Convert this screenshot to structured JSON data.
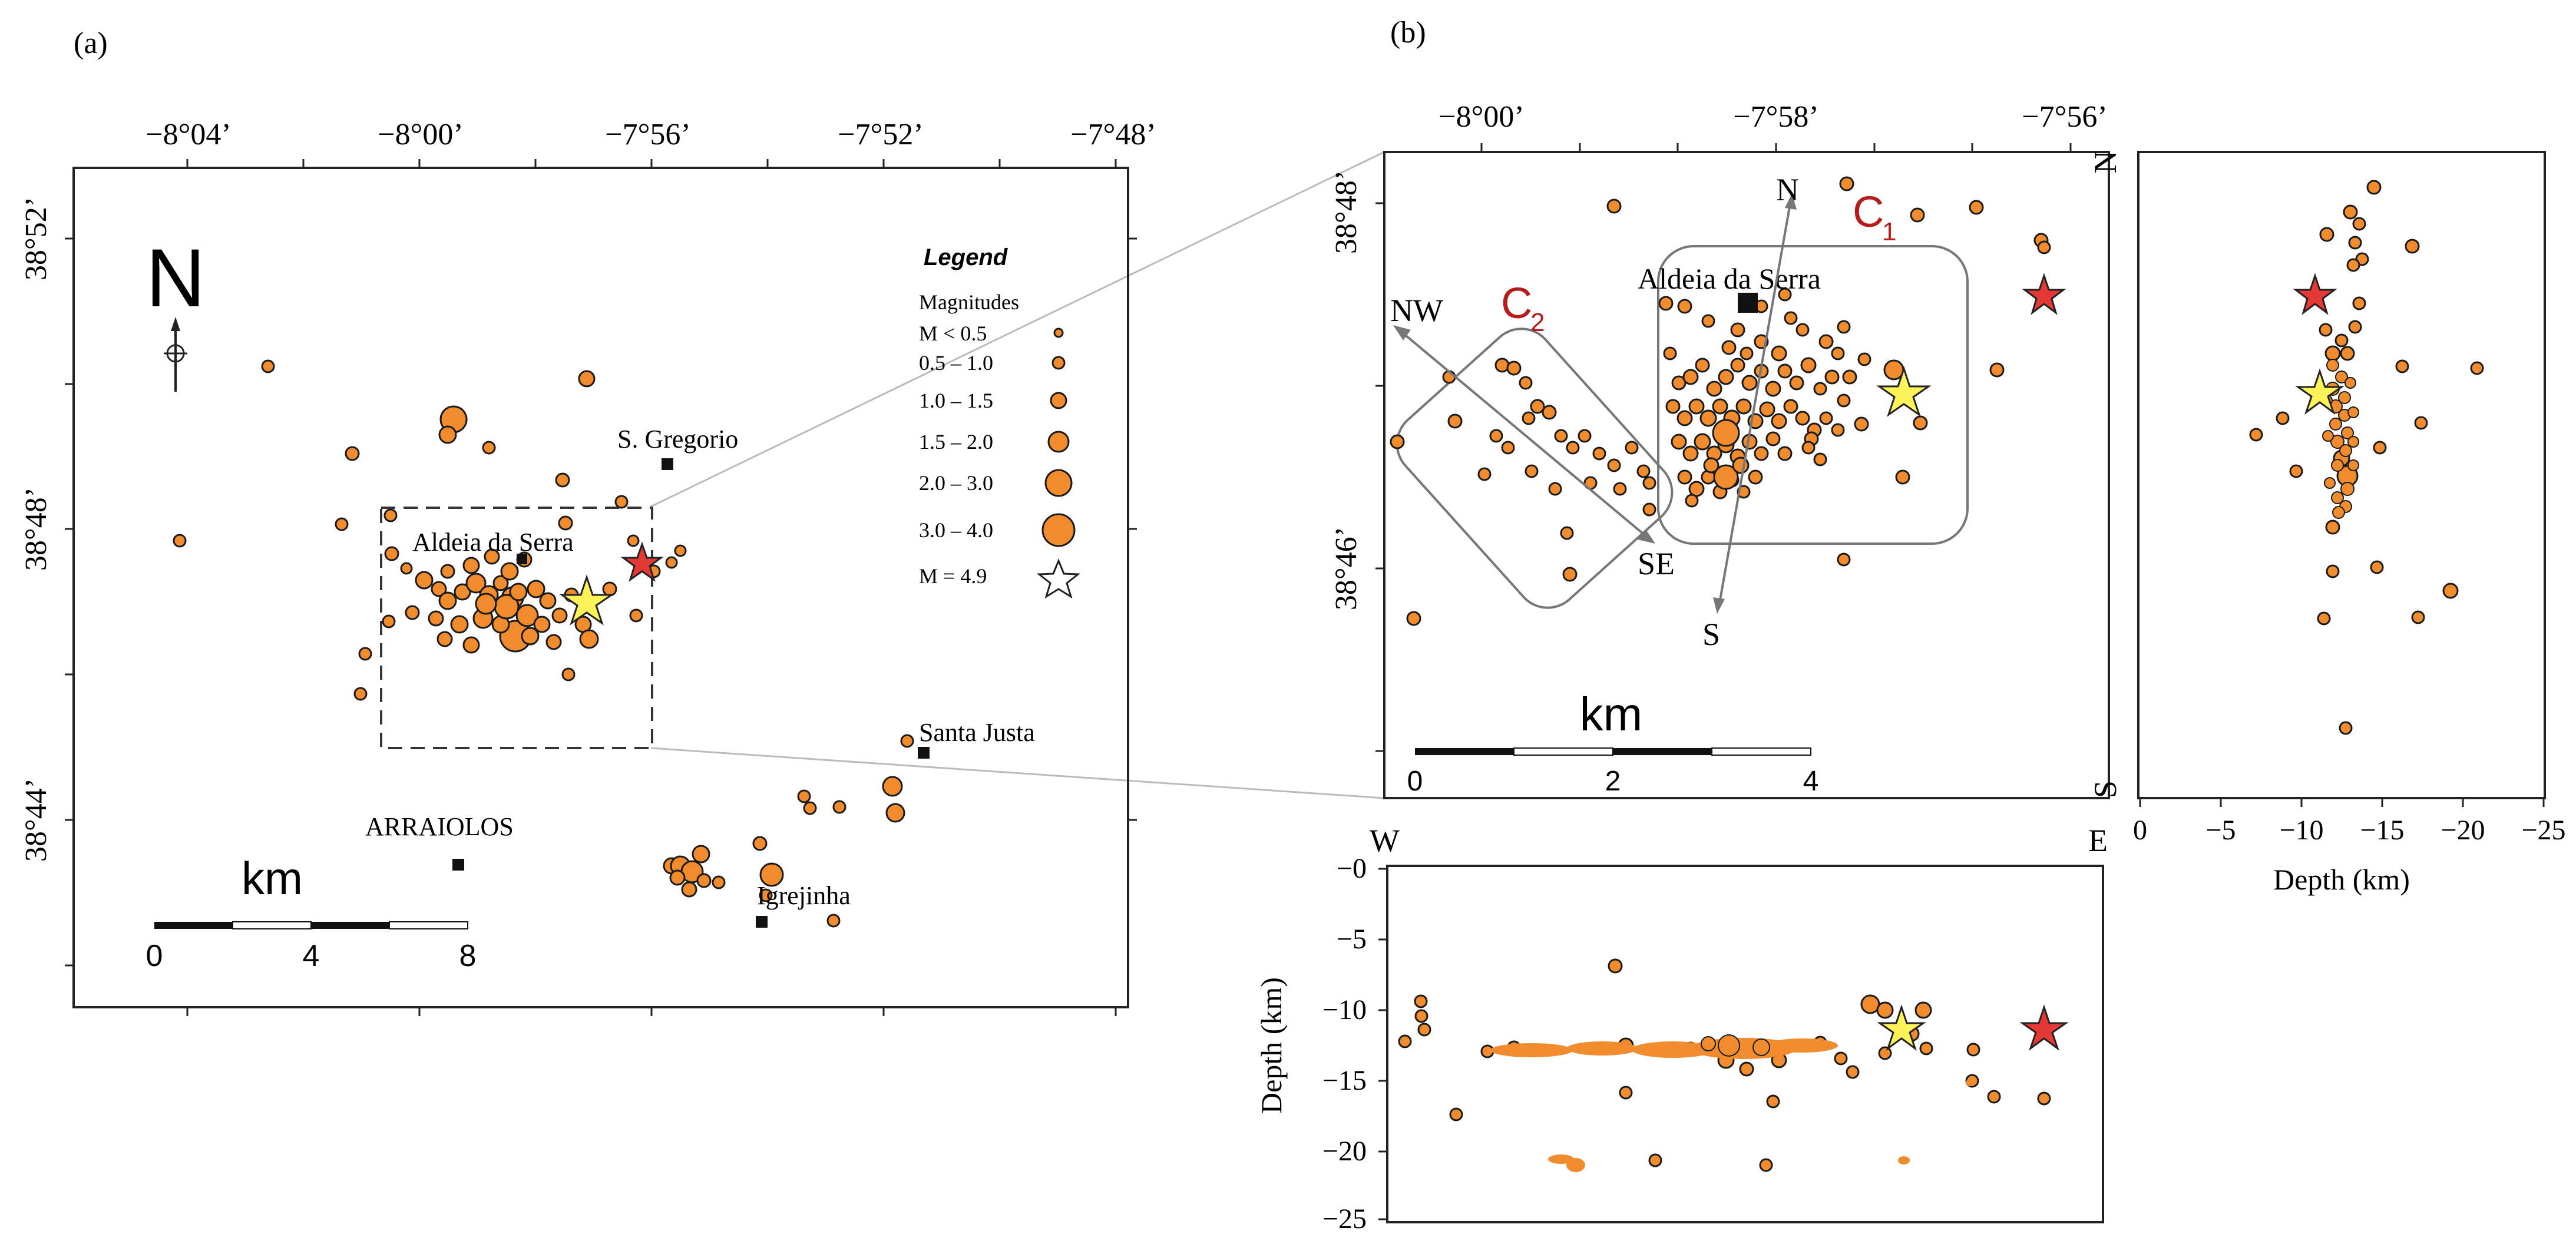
{
  "colors": {
    "event": "#f08c2e",
    "red_star": "#e53935",
    "yellow_star": "#fff35a",
    "frame": "#222222",
    "cluster_box": "#777777",
    "cluster_label": "#b71c1c"
  },
  "panel_a": {
    "label": "(a)",
    "x_ticks": [
      "−8°04’",
      "−8°00’",
      "−7°56’",
      "−7°52’",
      "−7°48’"
    ],
    "y_ticks": [
      "38°52’",
      "38°48’",
      "38°44’"
    ],
    "north": "N",
    "places": [
      "S. Gregorio",
      "Aldeia da Serra",
      "Santa Justa",
      "ARRAIOLOS",
      "Igrejinha"
    ],
    "scale": {
      "unit": "km",
      "ticks": [
        "0",
        "4",
        "8"
      ]
    },
    "legend": {
      "title": "Legend",
      "subtitle": "Magnitudes",
      "items": [
        "M < 0.5",
        "0.5 – 1.0",
        "1.0 – 1.5",
        "1.5 – 2.0",
        "2.0 – 3.0",
        "3.0 – 4.0",
        "M = 4.9"
      ]
    }
  },
  "panel_b": {
    "label": "(b)",
    "x_ticks": [
      "−8°00’",
      "−7°58’",
      "−7°56’"
    ],
    "y_ticks": [
      "38°48’",
      "38°46’"
    ],
    "place": "Aldeia da Serra",
    "directions": {
      "nw": "NW",
      "se": "SE",
      "n": "N",
      "s": "S"
    },
    "clusters": {
      "c1": "C",
      "c1_sub": "1",
      "c2": "C",
      "c2_sub": "2"
    },
    "scale": {
      "unit": "km",
      "ticks": [
        "0",
        "2",
        "4"
      ]
    }
  },
  "section_ew": {
    "west": "W",
    "east": "E",
    "ylabel": "Depth (km)",
    "y_ticks": [
      "−0",
      "−5",
      "−10",
      "−15",
      "−20",
      "−25"
    ]
  },
  "section_ns": {
    "north": "N",
    "south": "S",
    "xlabel": "Depth (km)",
    "x_ticks": [
      "0",
      "−5",
      "−10",
      "−15",
      "−20",
      "−25"
    ]
  }
}
